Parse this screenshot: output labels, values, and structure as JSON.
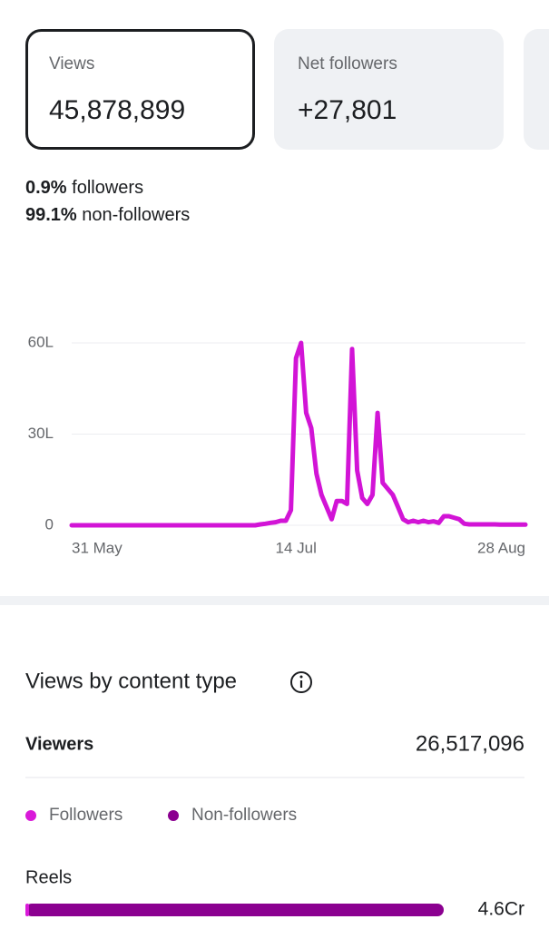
{
  "cards": [
    {
      "label": "Views",
      "value": "45,878,899"
    },
    {
      "label": "Net followers",
      "value": "+27,801"
    }
  ],
  "audience": [
    {
      "share": "0.9%",
      "label": "followers"
    },
    {
      "share": "99.1%",
      "label": "non-followers"
    }
  ],
  "chart_data": {
    "type": "line",
    "color": "#d214d6",
    "x": [
      0,
      1,
      2,
      3,
      4,
      5,
      6,
      7,
      8,
      9,
      10,
      11,
      12,
      13,
      14,
      15,
      16,
      17,
      18,
      19,
      20,
      21,
      22,
      23,
      24,
      25,
      26,
      27,
      28,
      29,
      30,
      31,
      32,
      33,
      34,
      35,
      36,
      37,
      38,
      39,
      40,
      41,
      42,
      43,
      44,
      45,
      46,
      47,
      48,
      49,
      50,
      51,
      52,
      53,
      54,
      55,
      56,
      57,
      58,
      59,
      60,
      61,
      62,
      63,
      64,
      65,
      66,
      67,
      68,
      69,
      70,
      71,
      72,
      73,
      74,
      75,
      76,
      77,
      78,
      79,
      80,
      81,
      82,
      83,
      84,
      85,
      86,
      87,
      88,
      89
    ],
    "values": [
      0,
      0,
      0,
      0,
      0,
      0,
      0,
      0,
      0,
      0,
      0,
      0,
      0,
      0,
      0,
      0,
      0,
      0,
      0,
      0,
      0,
      0,
      0,
      0,
      0,
      0,
      0,
      0,
      0,
      0,
      0,
      0,
      0,
      0,
      0,
      0,
      0,
      0.3,
      0.5,
      0.8,
      1,
      1.5,
      1.5,
      5,
      55,
      60,
      37,
      32,
      17,
      10,
      6,
      2,
      8,
      8,
      7,
      58,
      18,
      9,
      7,
      10,
      37,
      14,
      12,
      10,
      6,
      2,
      1,
      1.5,
      1,
      1.5,
      1,
      1.3,
      0.8,
      3,
      3,
      2.5,
      2,
      0.5,
      0.3,
      0.3,
      0.3,
      0.3,
      0.3,
      0.3,
      0.2,
      0.2,
      0.2,
      0.2,
      0.2,
      0.2
    ],
    "xlim": [
      0,
      89
    ],
    "xticks": [
      {
        "value": 0,
        "label": "31 May"
      },
      {
        "value": 44,
        "label": "14 Jul"
      },
      {
        "value": 89,
        "label": "28 Aug"
      }
    ],
    "ylim": [
      0,
      60
    ],
    "yticks": [
      0,
      {
        "value": 30,
        "label": "30L"
      },
      {
        "value": 60,
        "label": "60L"
      }
    ],
    "grid": true
  },
  "content_type": {
    "title": "Views by content type",
    "viewers_label": "Viewers",
    "viewers_value": "26,517,096",
    "legend": [
      {
        "name": "Followers",
        "color": "#d91ad9"
      },
      {
        "name": "Non-followers",
        "color": "#8b0090"
      }
    ],
    "rows": [
      {
        "label": "Reels",
        "value_label": "4.6Cr"
      }
    ]
  }
}
